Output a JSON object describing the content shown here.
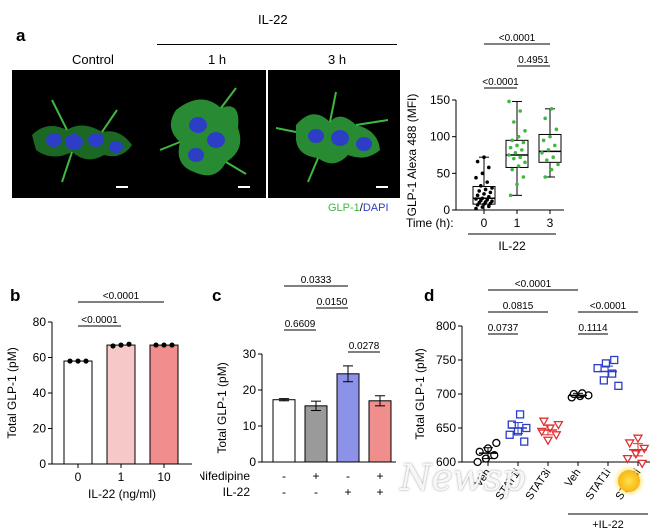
{
  "panels": {
    "a": {
      "letter": "a",
      "header_il22": "IL-22",
      "micro_labels": [
        "Control",
        "1 h",
        "3 h"
      ],
      "legend_glp1": "GLP-1",
      "legend_sep": "/",
      "legend_dapi": "DAPI"
    },
    "b": {
      "letter": "b"
    },
    "c": {
      "letter": "c"
    },
    "d": {
      "letter": "d"
    }
  },
  "watermark": "Newsp",
  "colors": {
    "green": "#3fb83f",
    "blue": "#2c3ec6",
    "pink": "#f7c8c8",
    "salmon": "#f08d8d",
    "gray": "#9a9a9a",
    "lavender": "#8b92e8",
    "red": "#e03030"
  },
  "chart_data": [
    {
      "id": "a",
      "type": "box",
      "ylabel": "GLP-1 Alexa 488 (MFI)",
      "ylim": [
        0,
        150
      ],
      "yticks": [
        0,
        50,
        100,
        150
      ],
      "xlabel_prefix": "Time (h):",
      "categories": [
        "0",
        "1",
        "3"
      ],
      "group_label": "IL-22",
      "boxes": [
        {
          "min": 0,
          "q1": 8,
          "median": 16,
          "q3": 32,
          "max": 72,
          "color": "#000000",
          "points": [
            2,
            4,
            5,
            7,
            8,
            9,
            10,
            11,
            12,
            13,
            14,
            15,
            16,
            18,
            20,
            22,
            24,
            26,
            28,
            30,
            33,
            38,
            44,
            50,
            58,
            66,
            72
          ]
        },
        {
          "min": 20,
          "q1": 58,
          "median": 75,
          "q3": 95,
          "max": 148,
          "color": "#3fb83f",
          "points": [
            20,
            35,
            45,
            55,
            60,
            65,
            70,
            72,
            75,
            78,
            82,
            85,
            88,
            92,
            95,
            100,
            108,
            120,
            135,
            148
          ]
        },
        {
          "min": 45,
          "q1": 65,
          "median": 80,
          "q3": 103,
          "max": 138,
          "color": "#3fb83f",
          "points": [
            45,
            55,
            62,
            68,
            72,
            78,
            82,
            88,
            95,
            100,
            110,
            125,
            138
          ]
        }
      ],
      "comparisons": [
        {
          "from": 0,
          "to": 2,
          "label": "<0.0001"
        },
        {
          "from": 1,
          "to": 2,
          "label": "0.4951"
        },
        {
          "from": 0,
          "to": 1,
          "label": "<0.0001"
        }
      ]
    },
    {
      "id": "b",
      "type": "bar",
      "ylabel": "Total GLP-1 (pM)",
      "xlabel": "IL-22 (ng/ml)",
      "ylim": [
        0,
        80
      ],
      "yticks": [
        0,
        20,
        40,
        60,
        80
      ],
      "categories": [
        "0",
        "1",
        "10"
      ],
      "values": [
        58,
        67,
        67
      ],
      "points": [
        [
          58,
          58,
          58
        ],
        [
          66.5,
          67,
          67.5
        ],
        [
          67,
          67,
          67
        ]
      ],
      "colors": [
        "#ffffff",
        "#f7c8c8",
        "#f08d8d"
      ],
      "comparisons": [
        {
          "from": 0,
          "to": 2,
          "label": "<0.0001"
        },
        {
          "from": 0,
          "to": 1,
          "label": "<0.0001"
        }
      ]
    },
    {
      "id": "c",
      "type": "bar",
      "ylabel": "Total GLP-1 (pM)",
      "ylim": [
        0,
        30
      ],
      "yticks": [
        0,
        10,
        20,
        30
      ],
      "factor_labels": [
        "Nifedipine",
        "IL-22"
      ],
      "factor_rows": [
        [
          "-",
          "+",
          "-",
          "+"
        ],
        [
          "-",
          "-",
          "+",
          "+"
        ]
      ],
      "values": [
        17.3,
        15.6,
        24.5,
        17.0
      ],
      "errors": [
        0.3,
        1.3,
        2.2,
        1.4
      ],
      "colors": [
        "#ffffff",
        "#9a9a9a",
        "#8b92e8",
        "#f08d8d"
      ],
      "comparisons": [
        {
          "from": 0,
          "to": 2,
          "label": "0.0333"
        },
        {
          "from": 1,
          "to": 2,
          "label": "0.0150"
        },
        {
          "from": 0,
          "to": 1,
          "label": "0.6609"
        },
        {
          "from": 2,
          "to": 3,
          "label": "0.0278"
        }
      ]
    },
    {
      "id": "d",
      "type": "scatter",
      "ylabel": "Total GLP-1 (pM)",
      "ylim": [
        600,
        800
      ],
      "yticks": [
        600,
        650,
        700,
        750,
        800
      ],
      "categories": [
        "Veh",
        "STAT1i",
        "STAT3i",
        "Veh",
        "STAT1i",
        "STAT3i"
      ],
      "group_label": "+IL-22",
      "groups": [
        {
          "mean": 613,
          "sem": 8,
          "marker": "circle",
          "color": "#000000",
          "points": [
            600,
            605,
            610,
            615,
            620,
            628
          ]
        },
        {
          "mean": 650,
          "sem": 8,
          "marker": "square",
          "color": "#2c3ec6",
          "points": [
            630,
            640,
            645,
            650,
            655,
            670
          ]
        },
        {
          "mean": 647,
          "sem": 7,
          "marker": "triangle",
          "color": "#e03030",
          "points": [
            632,
            640,
            645,
            650,
            655,
            660
          ]
        },
        {
          "mean": 698,
          "sem": 3,
          "marker": "circle",
          "color": "#000000",
          "points": [
            695,
            697,
            698,
            700,
            701
          ]
        },
        {
          "mean": 733,
          "sem": 8,
          "marker": "square",
          "color": "#2c3ec6",
          "points": [
            712,
            720,
            730,
            738,
            745,
            750
          ]
        },
        {
          "mean": 618,
          "sem": 9,
          "marker": "triangle",
          "color": "#e03030",
          "points": [
            598,
            605,
            612,
            620,
            628,
            635
          ]
        }
      ],
      "comparisons": [
        {
          "from": 0,
          "to": 3,
          "label": "<0.0001"
        },
        {
          "from": 0,
          "to": 2,
          "label": "0.0815"
        },
        {
          "from": 0,
          "to": 1,
          "label": "0.0737"
        },
        {
          "from": 3,
          "to": 5,
          "label": "<0.0001"
        },
        {
          "from": 3,
          "to": 4,
          "label": "0.1114"
        }
      ]
    }
  ]
}
